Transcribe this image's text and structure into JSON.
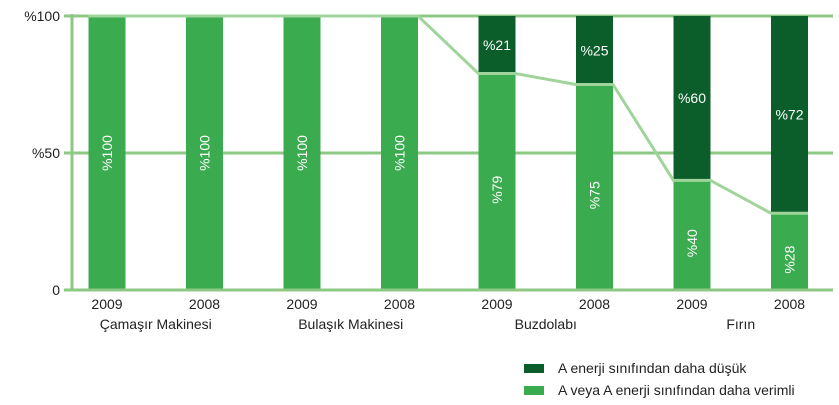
{
  "chart_data": {
    "type": "bar",
    "stacked": true,
    "categories": [
      "2009",
      "2008",
      "2009",
      "2008",
      "2009",
      "2008",
      "2009",
      "2008"
    ],
    "groups": [
      {
        "label": "Çamaşır Makinesi",
        "span": [
          0,
          1
        ]
      },
      {
        "label": "Bulaşık Makinesi",
        "span": [
          2,
          3
        ]
      },
      {
        "label": "Buzdolabı",
        "span": [
          4,
          5
        ]
      },
      {
        "label": "Fırın",
        "span": [
          6,
          7
        ]
      }
    ],
    "series": [
      {
        "name": "A veya A enerji sınıfından daha verimli",
        "color": "#3aab4f",
        "values": [
          100,
          100,
          100,
          100,
          79,
          75,
          40,
          28
        ],
        "labels": [
          "%100",
          "%100",
          "%100",
          "%100",
          "%79",
          "%75",
          "%40",
          "%28"
        ]
      },
      {
        "name": "A enerji sınıfından daha düşük",
        "color": "#0b5e2a",
        "values": [
          0,
          0,
          0,
          0,
          21,
          25,
          60,
          72
        ],
        "labels": [
          "",
          "",
          "",
          "",
          "%21",
          "%25",
          "%60",
          "%72"
        ]
      }
    ],
    "trend_line_color": "#9fd49a",
    "y_ticks": [
      0,
      50,
      100
    ],
    "y_tick_labels": [
      "0",
      "%50",
      "%100"
    ],
    "ylim": [
      0,
      100
    ],
    "grid": true,
    "grid_color": "#8dc985",
    "legend_position": "bottom-right"
  }
}
